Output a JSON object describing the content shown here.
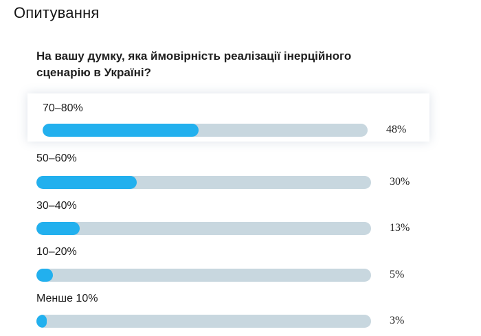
{
  "poll": {
    "heading": "Опитування",
    "question": "На вашу думку, яка ймовірність реалізації інерційного сценарію в Україні?",
    "accent_color": "#22b0ee",
    "track_color": "#c8d7df",
    "options": [
      {
        "label": "70–80%",
        "percent_text": "48%",
        "percent": 48,
        "selected": true
      },
      {
        "label": "50–60%",
        "percent_text": "30%",
        "percent": 30,
        "selected": false
      },
      {
        "label": "30–40%",
        "percent_text": "13%",
        "percent": 13,
        "selected": false
      },
      {
        "label": "10–20%",
        "percent_text": "5%",
        "percent": 5,
        "selected": false
      },
      {
        "label": "Менше 10%",
        "percent_text": "3%",
        "percent": 3,
        "selected": false
      }
    ]
  }
}
